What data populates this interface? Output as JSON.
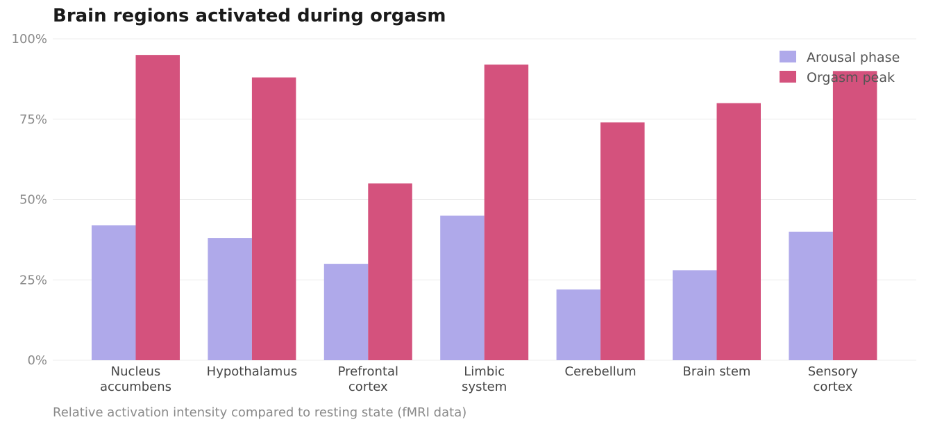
{
  "chart_data": {
    "type": "bar",
    "title": "Brain regions activated during orgasm",
    "caption": "Relative activation intensity compared to resting state (fMRI data)",
    "xlabel": "",
    "ylabel": "",
    "categories": [
      [
        "Nucleus",
        "accumbens"
      ],
      [
        "Hypothalamus"
      ],
      [
        "Prefrontal",
        "cortex"
      ],
      [
        "Limbic",
        "system"
      ],
      [
        "Cerebellum"
      ],
      [
        "Brain stem"
      ],
      [
        "Sensory",
        "cortex"
      ]
    ],
    "series": [
      {
        "name": "Arousal phase",
        "color": "#afa9ea",
        "values": [
          42,
          38,
          30,
          45,
          22,
          28,
          40
        ]
      },
      {
        "name": "Orgasm peak",
        "color": "#d4527d",
        "values": [
          95,
          88,
          55,
          92,
          74,
          80,
          90
        ]
      }
    ],
    "ylim": [
      0,
      100
    ],
    "yticks": [
      0,
      25,
      50,
      75,
      100
    ],
    "ytick_labels": [
      "0%",
      "25%",
      "50%",
      "75%",
      "100%"
    ],
    "grid": true,
    "legend_position": "top-right"
  }
}
